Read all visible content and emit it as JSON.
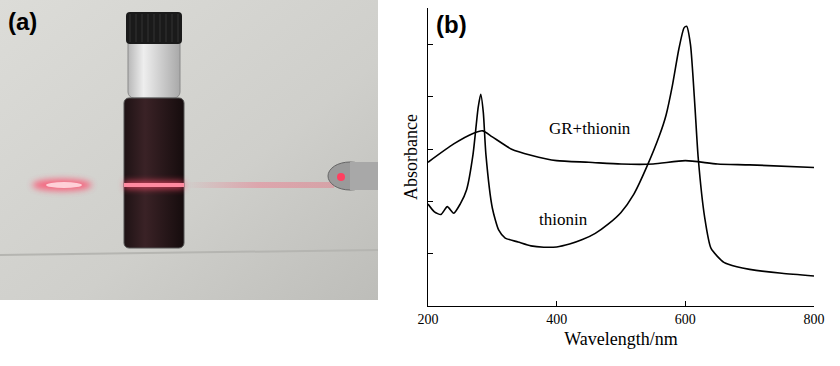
{
  "panel_a": {
    "label": "(a)"
  },
  "chart_data": {
    "type": "line",
    "label": "(b)",
    "x_label": "Wavelength/nm",
    "y_label": "Absorbance",
    "xlim": [
      200,
      800
    ],
    "xticks": [
      200,
      400,
      600,
      800
    ],
    "ylim": [
      0,
      1.14
    ],
    "yticks": [
      0.2,
      0.4,
      0.6,
      0.8,
      1.0
    ],
    "tick_labels": "x",
    "grid": false,
    "legend": false,
    "series": [
      {
        "name": "thionin",
        "color": "#000000",
        "x": [
          200,
          210,
          220,
          230,
          240,
          250,
          260,
          270,
          278,
          282,
          286,
          290,
          300,
          310,
          320,
          340,
          360,
          380,
          400,
          420,
          440,
          460,
          480,
          500,
          520,
          540,
          560,
          570,
          580,
          590,
          598,
          602,
          608,
          615,
          620,
          630,
          640,
          660,
          680,
          700,
          750,
          800
        ],
        "values": [
          0.39,
          0.36,
          0.35,
          0.38,
          0.355,
          0.39,
          0.445,
          0.58,
          0.76,
          0.81,
          0.74,
          0.58,
          0.375,
          0.29,
          0.26,
          0.245,
          0.23,
          0.225,
          0.226,
          0.237,
          0.254,
          0.278,
          0.313,
          0.358,
          0.428,
          0.532,
          0.654,
          0.73,
          0.845,
          0.984,
          1.064,
          1.07,
          1.0,
          0.76,
          0.567,
          0.34,
          0.22,
          0.167,
          0.15,
          0.14,
          0.125,
          0.115
        ]
      },
      {
        "name": "GR+thionin",
        "color": "#000000",
        "x": [
          200,
          240,
          270,
          285,
          300,
          330,
          360,
          400,
          450,
          500,
          550,
          600,
          650,
          700,
          800
        ],
        "values": [
          0.55,
          0.62,
          0.66,
          0.67,
          0.647,
          0.6,
          0.577,
          0.556,
          0.55,
          0.543,
          0.543,
          0.556,
          0.543,
          0.54,
          0.53
        ]
      }
    ],
    "annotations": [
      {
        "text": "GR+thionin",
        "x": 452,
        "y": 0.68
      },
      {
        "text": "thionin",
        "x": 410,
        "y": 0.33
      }
    ]
  }
}
